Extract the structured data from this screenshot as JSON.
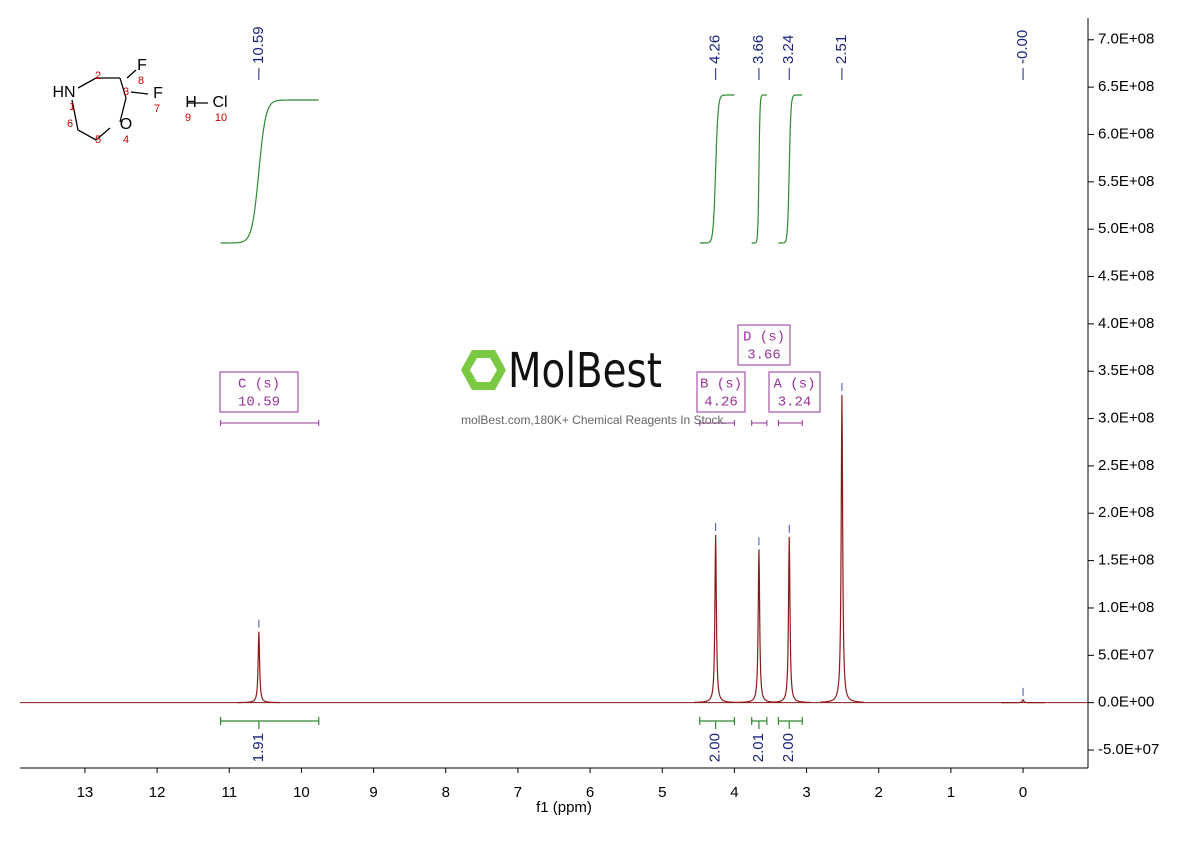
{
  "chart_data": {
    "type": "nmr",
    "x_label": "f1 (ppm)",
    "xlim": [
      13.9,
      -0.9
    ],
    "xticks": [
      13,
      12,
      11,
      10,
      9,
      8,
      7,
      6,
      5,
      4,
      3,
      2,
      1,
      0
    ],
    "ylim": [
      -69000000,
      723000000
    ],
    "yticks": [
      {
        "value": -50000000,
        "label": "-5.0E+07"
      },
      {
        "value": 0,
        "label": "0.0E+00"
      },
      {
        "value": 50000000,
        "label": "5.0E+07"
      },
      {
        "value": 100000000,
        "label": "1.0E+08"
      },
      {
        "value": 150000000,
        "label": "1.5E+08"
      },
      {
        "value": 200000000,
        "label": "2.0E+08"
      },
      {
        "value": 250000000,
        "label": "2.5E+08"
      },
      {
        "value": 300000000,
        "label": "3.0E+08"
      },
      {
        "value": 350000000,
        "label": "3.5E+08"
      },
      {
        "value": 400000000,
        "label": "4.0E+08"
      },
      {
        "value": 450000000,
        "label": "4.5E+08"
      },
      {
        "value": 500000000,
        "label": "5.0E+08"
      },
      {
        "value": 550000000,
        "label": "5.5E+08"
      },
      {
        "value": 600000000,
        "label": "6.0E+08"
      },
      {
        "value": 650000000,
        "label": "6.5E+08"
      },
      {
        "value": 700000000,
        "label": "7.0E+08"
      }
    ],
    "color": "#8b1a1a",
    "peaks": {
      "x": [
        10.59,
        4.26,
        3.66,
        3.24,
        2.51,
        0
      ],
      "values": [
        75000000,
        177000000,
        162000000,
        175000000,
        325000000,
        3000000
      ],
      "x_labels": [
        "10.59",
        "4.26",
        "3.66",
        "3.24",
        "2.51",
        "-0.00"
      ]
    },
    "integrals": {
      "ranges": [
        [
          11.12,
          9.76
        ],
        [
          4.48,
          4.0
        ],
        [
          3.76,
          3.55
        ],
        [
          3.39,
          3.06
        ]
      ],
      "values": [
        1.91,
        2.0,
        2.01,
        2.0
      ],
      "value_labels": [
        "1.91",
        "2.00",
        "2.01",
        "2.00"
      ],
      "color": "#2e8b2e"
    },
    "multiplets": {
      "labels": [
        "C (s)",
        "B (s)",
        "D (s)",
        "A (s)"
      ],
      "shifts": [
        "10.59",
        "4.26",
        "3.66",
        "3.24"
      ],
      "color": "#993399"
    }
  },
  "structure": {
    "labels": [
      "HN",
      "1",
      "2",
      "3",
      "F",
      "8",
      "F",
      "7",
      "O",
      "4",
      "5",
      "6",
      "H",
      "Cl",
      "9",
      "10"
    ]
  },
  "watermark": {
    "brand": "MolBest",
    "tagline": "molBest.com,180K+ Chemical Reagents In Stock."
  }
}
